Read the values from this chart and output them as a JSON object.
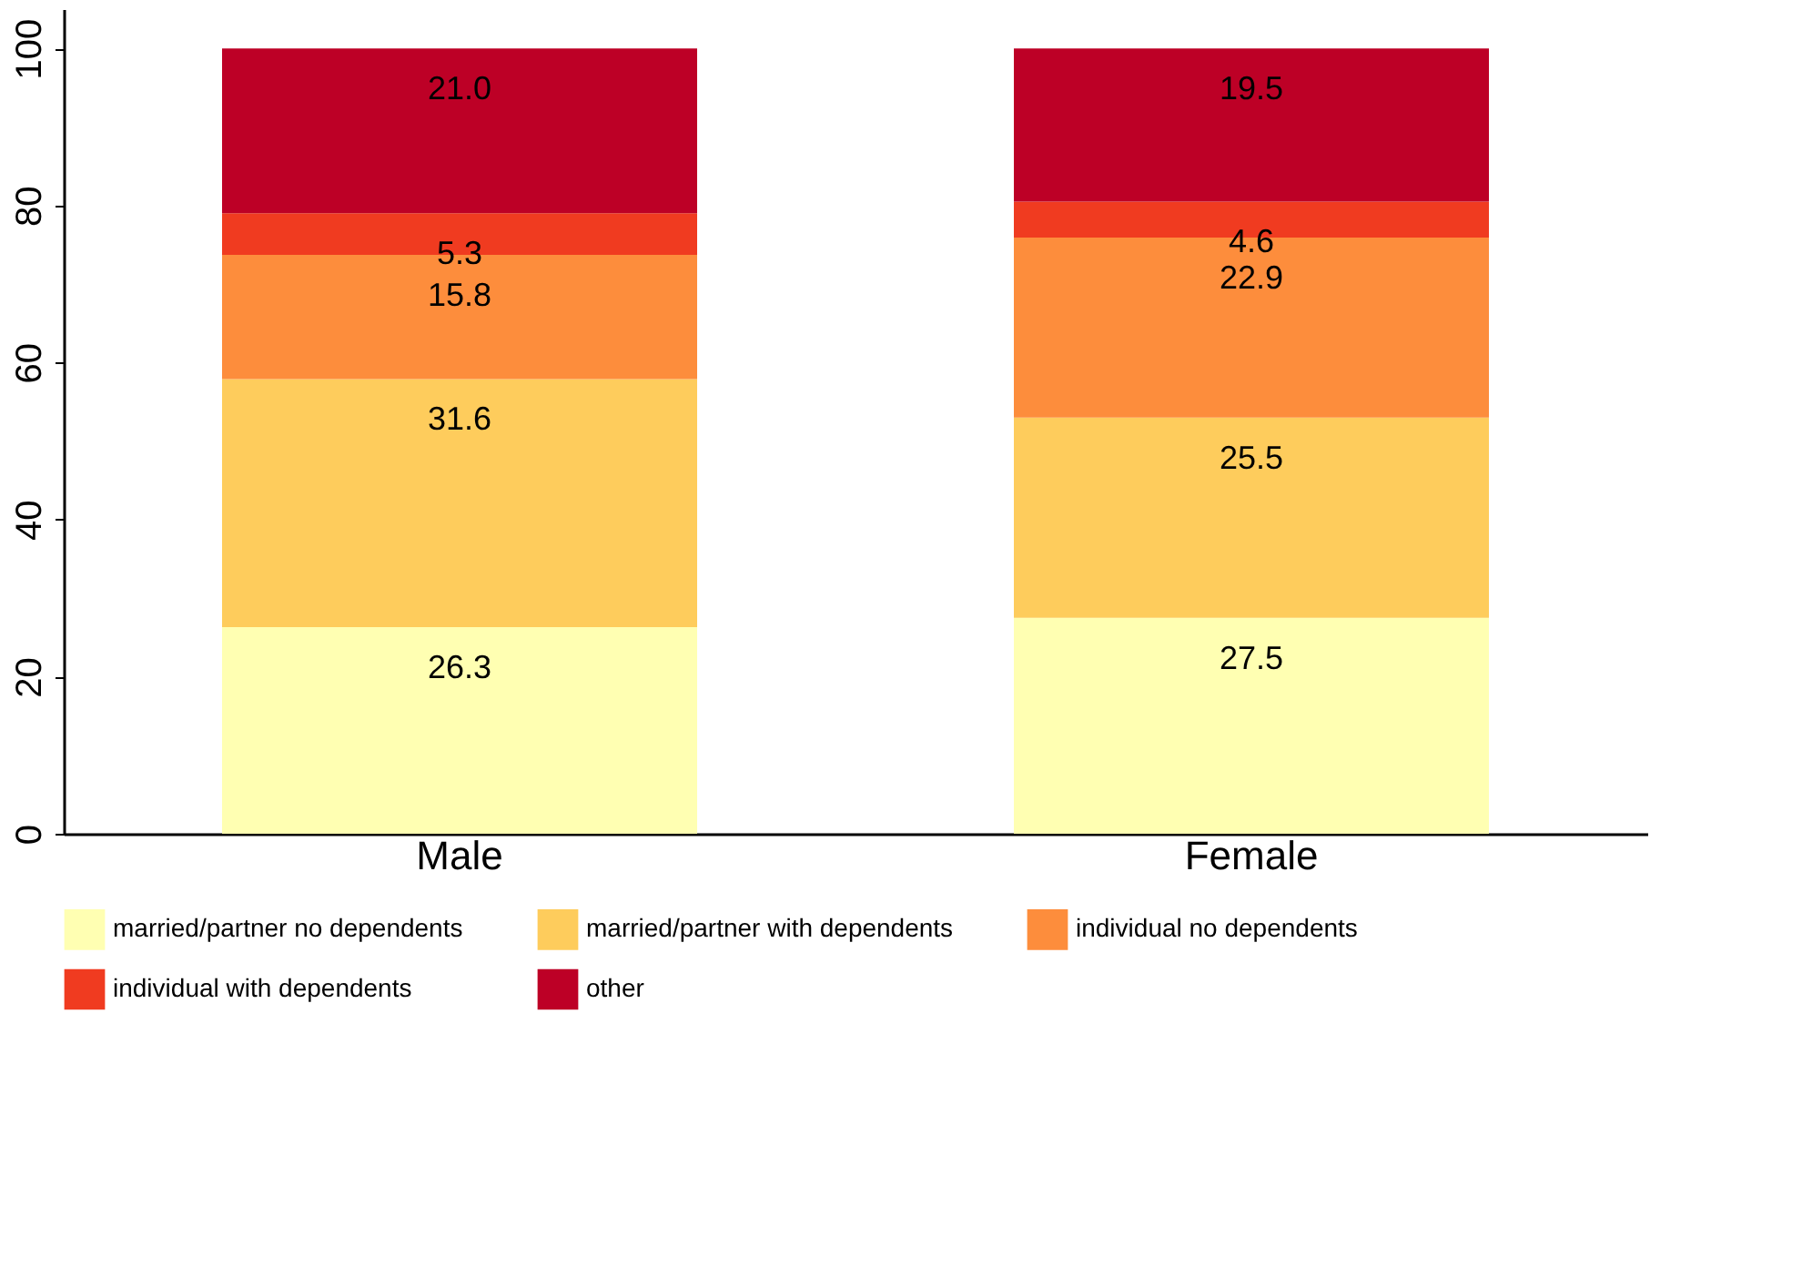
{
  "chart_data": {
    "type": "bar",
    "stacked": true,
    "categories": [
      "Male",
      "Female"
    ],
    "series": [
      {
        "name": "married/partner no dependents",
        "color": "#ffffb2",
        "values": [
          26.3,
          27.5
        ],
        "value_labels": [
          "26.3",
          "27.5"
        ]
      },
      {
        "name": "married/partner with dependents",
        "color": "#fecc5c",
        "values": [
          31.6,
          25.5
        ],
        "value_labels": [
          "31.6",
          "25.5"
        ]
      },
      {
        "name": "individual no dependents",
        "color": "#fd8d3c",
        "values": [
          15.8,
          22.9
        ],
        "value_labels": [
          "15.8",
          "22.9"
        ]
      },
      {
        "name": "individual with dependents",
        "color": "#f03b20",
        "values": [
          5.3,
          4.6
        ],
        "value_labels": [
          "5.3",
          "4.6"
        ]
      },
      {
        "name": "other",
        "color": "#bd0026",
        "values": [
          21.0,
          19.5
        ],
        "value_labels": [
          "21.0",
          "19.5"
        ]
      }
    ],
    "ylim": [
      0,
      105
    ],
    "yticks": [
      0,
      20,
      40,
      60,
      80,
      100
    ],
    "grid": false,
    "legend": "bottom"
  }
}
